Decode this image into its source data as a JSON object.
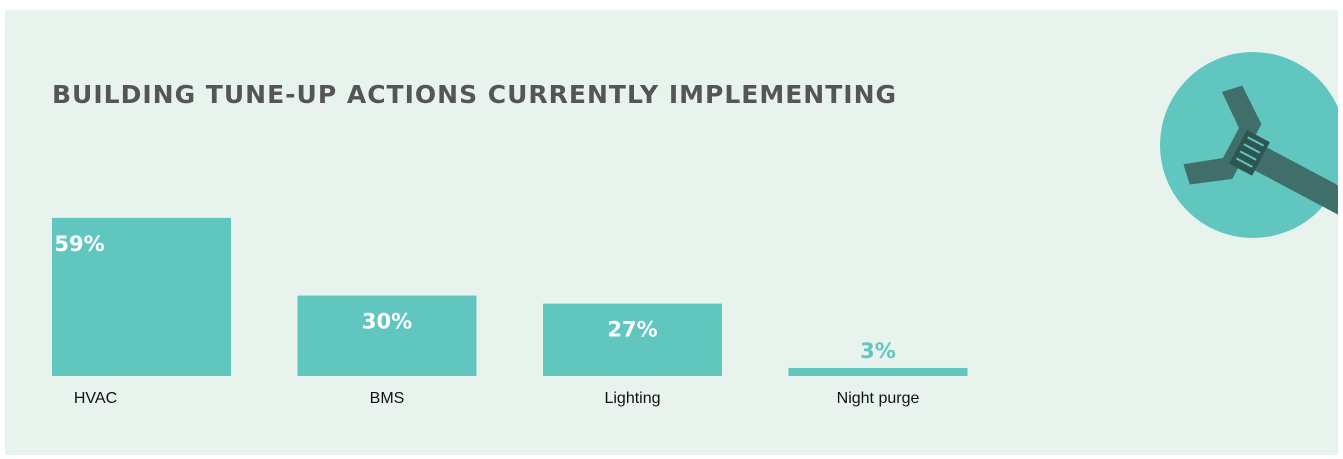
{
  "chart_data": {
    "type": "bar",
    "title": "BUILDING TUNE-UP ACTIONS CURRENTLY IMPLEMENTING",
    "categories": [
      "HVAC",
      "BMS",
      "Lighting",
      "Night purge"
    ],
    "values": [
      59,
      30,
      27,
      3
    ],
    "value_labels": [
      "59%",
      "30%",
      "27%",
      "3%"
    ],
    "color": "#62c6c0"
  }
}
